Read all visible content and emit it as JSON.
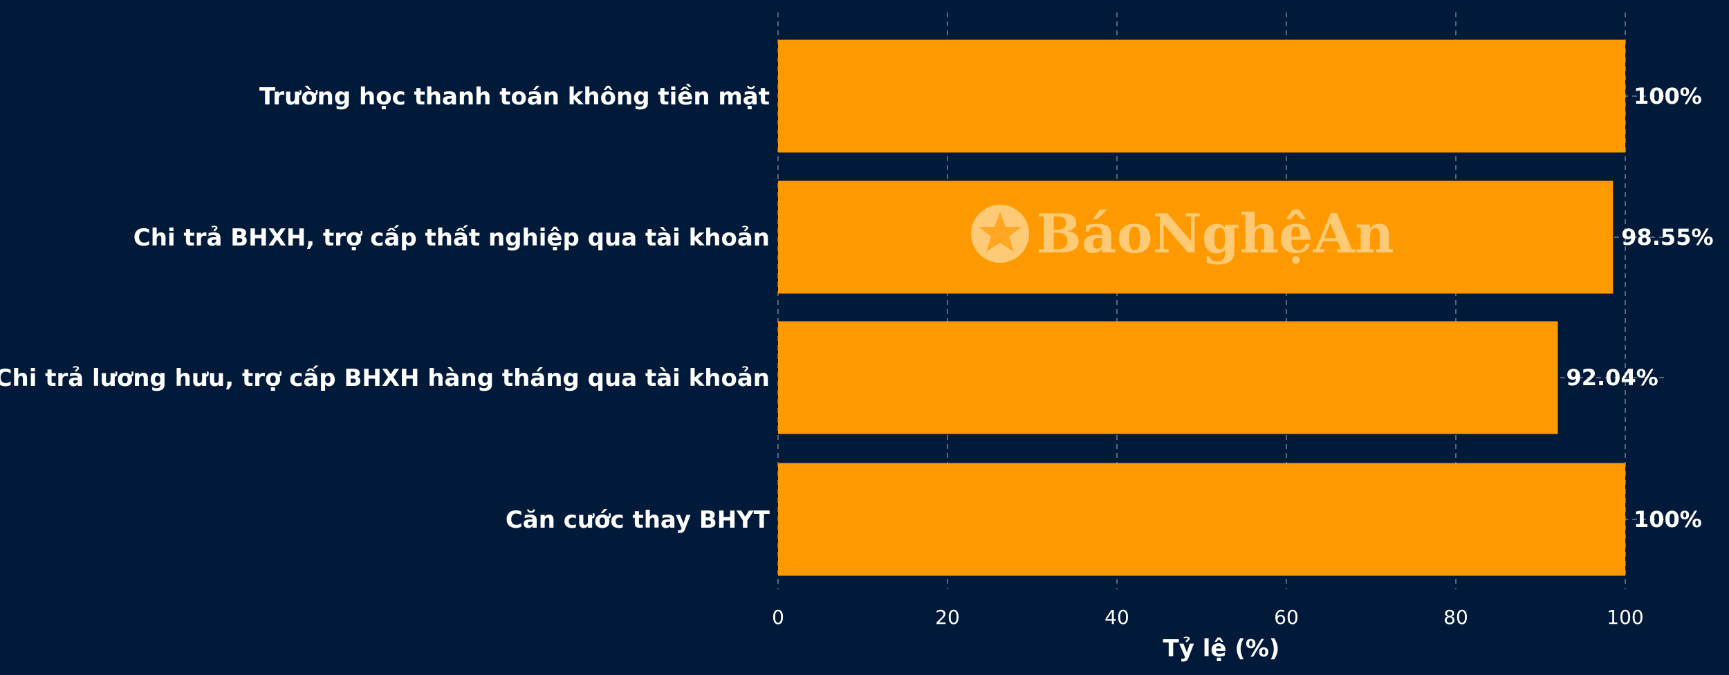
{
  "chart_data": {
    "type": "bar",
    "orientation": "horizontal",
    "categories": [
      "Trường học thanh toán không tiền mặt",
      "Chi trả BHXH, trợ cấp thất nghiệp qua tài khoản",
      "Chi trả lương hưu, trợ cấp BHXH hàng tháng qua tài khoản",
      "Căn cước thay BHYT"
    ],
    "values": [
      100,
      98.55,
      92.04,
      100
    ],
    "value_labels": [
      "100%",
      "98.55%",
      "92.04%",
      "100%"
    ],
    "xlabel": "Tỷ lệ (%)",
    "ylabel": "",
    "xlim": [
      0,
      105
    ],
    "xticks": [
      0,
      20,
      40,
      60,
      80,
      100
    ],
    "grid": "x, dashed",
    "bar_color": "#ff9900",
    "background_color": "#011a3a",
    "text_color": "#ffffff"
  },
  "watermark": {
    "text": "BáoNghệAn",
    "logo_text": "Nghệ An",
    "icon": "star-logo-icon"
  }
}
